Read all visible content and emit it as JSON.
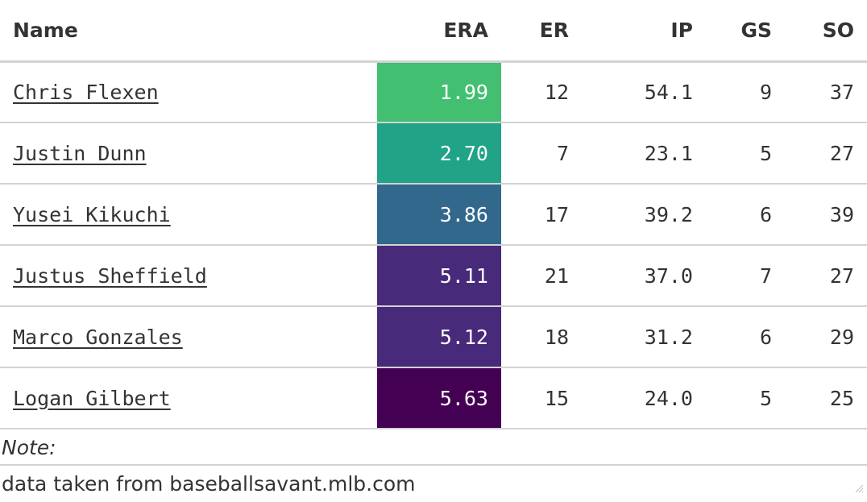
{
  "table": {
    "headers": {
      "name": "Name",
      "era": "ERA",
      "er": "ER",
      "ip": "IP",
      "gs": "GS",
      "so": "SO"
    }
  },
  "chart_data": {
    "type": "table",
    "columns": [
      "Name",
      "ERA",
      "ER",
      "IP",
      "GS",
      "SO"
    ],
    "rows": [
      {
        "name": "Chris Flexen",
        "era": "1.99",
        "er": "12",
        "ip": "54.1",
        "gs": "9",
        "so": "37",
        "era_color": "#43bf71"
      },
      {
        "name": "Justin Dunn",
        "era": "2.70",
        "er": "7",
        "ip": "23.1",
        "gs": "5",
        "so": "27",
        "era_color": "#20a386"
      },
      {
        "name": "Yusei Kikuchi",
        "era": "3.86",
        "er": "17",
        "ip": "39.2",
        "gs": "6",
        "so": "39",
        "era_color": "#33688d"
      },
      {
        "name": "Justus Sheffield",
        "era": "5.11",
        "er": "21",
        "ip": "37.0",
        "gs": "7",
        "so": "27",
        "era_color": "#472b7a"
      },
      {
        "name": "Marco Gonzales",
        "era": "5.12",
        "er": "18",
        "ip": "31.2",
        "gs": "6",
        "so": "29",
        "era_color": "#472a7a"
      },
      {
        "name": "Logan Gilbert",
        "era": "5.63",
        "er": "15",
        "ip": "24.0",
        "gs": "5",
        "so": "25",
        "era_color": "#440154"
      }
    ]
  },
  "footnote": {
    "label": "Note:",
    "text": "data taken from baseballsavant.mlb.com"
  }
}
